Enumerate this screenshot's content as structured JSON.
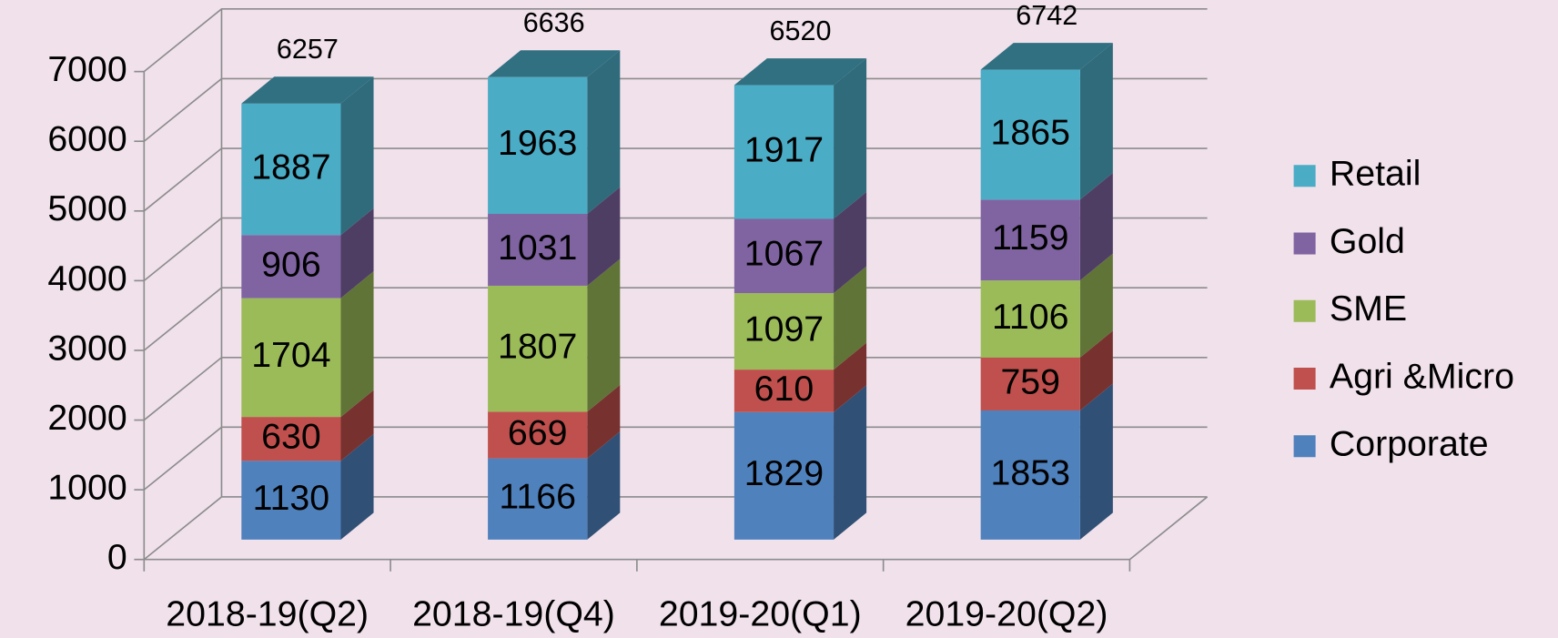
{
  "chart_data": {
    "type": "bar3d_stacked",
    "categories": [
      "2018-19(Q2)",
      "2018-19(Q4)",
      "2019-20(Q1)",
      "2019-20(Q2)"
    ],
    "series": [
      {
        "name": "Corporate",
        "color": "#4f81bd",
        "values": [
          1130,
          1166,
          1829,
          1853
        ]
      },
      {
        "name": "Agri &Micro",
        "color": "#c0504d",
        "values": [
          630,
          669,
          610,
          759
        ]
      },
      {
        "name": "SME",
        "color": "#9bbb59",
        "values": [
          1704,
          1807,
          1097,
          1106
        ]
      },
      {
        "name": "Gold",
        "color": "#8064a2",
        "values": [
          906,
          1031,
          1067,
          1159
        ]
      },
      {
        "name": "Retail",
        "color": "#4bacc6",
        "values": [
          1887,
          1963,
          1917,
          1865
        ]
      }
    ],
    "totals": [
      6257,
      6636,
      6520,
      6742
    ],
    "ylim": [
      0,
      7000
    ],
    "yticks": [
      0,
      1000,
      2000,
      3000,
      4000,
      5000,
      6000,
      7000
    ],
    "grid": true,
    "legend": "right"
  }
}
